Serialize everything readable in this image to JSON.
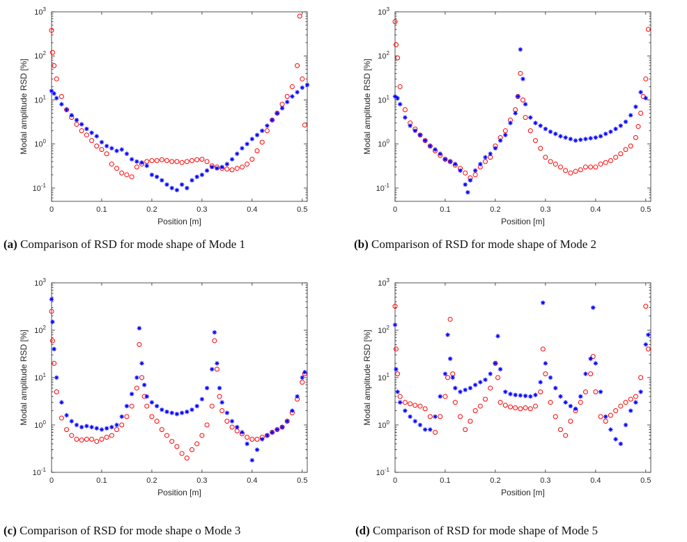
{
  "captions": [
    {
      "tag": "(a)",
      "text": "Comparison of RSD for mode shape of Mode 1"
    },
    {
      "tag": "(b)",
      "text": "Comparison of RSD for mode shape of Mode 2"
    },
    {
      "tag": "(c)",
      "text": "Comparison of RSD for mode shape o Mode 3"
    },
    {
      "tag": "(d)",
      "text": "Comparison of RSD for mode shape of Mode 5"
    }
  ],
  "colors": {
    "series_circle": "#ff0000",
    "series_star": "#0000ff",
    "axis": "#262626"
  },
  "chart_data": [
    {
      "type": "scatter",
      "xlabel": "Position [m]",
      "ylabel": "Modal amplitude RSD [%]",
      "xlim": [
        0,
        0.51
      ],
      "ylim": [
        0.05,
        1000
      ],
      "yscale": "log",
      "xticks": [
        "0",
        "0.1",
        "0.2",
        "0.3",
        "0.4",
        "0.5"
      ],
      "yticks": [
        "10-1",
        "100",
        "101",
        "102",
        "103"
      ],
      "series": [
        {
          "marker": "circle",
          "color": "#ff0000",
          "x": [
            0.0,
            0.002,
            0.005,
            0.01,
            0.02,
            0.03,
            0.04,
            0.05,
            0.06,
            0.07,
            0.08,
            0.09,
            0.1,
            0.11,
            0.12,
            0.13,
            0.14,
            0.15,
            0.16,
            0.17,
            0.18,
            0.19,
            0.2,
            0.21,
            0.22,
            0.23,
            0.24,
            0.25,
            0.26,
            0.27,
            0.28,
            0.29,
            0.3,
            0.31,
            0.32,
            0.33,
            0.34,
            0.35,
            0.36,
            0.37,
            0.38,
            0.39,
            0.4,
            0.41,
            0.42,
            0.43,
            0.44,
            0.45,
            0.46,
            0.47,
            0.48,
            0.49,
            0.495,
            0.5,
            0.505
          ],
          "y": [
            380,
            120,
            60,
            30,
            12,
            6,
            4,
            2.8,
            2.0,
            1.6,
            1.2,
            0.9,
            0.75,
            0.6,
            0.35,
            0.28,
            0.22,
            0.2,
            0.18,
            0.3,
            0.35,
            0.4,
            0.42,
            0.42,
            0.44,
            0.42,
            0.4,
            0.4,
            0.38,
            0.4,
            0.42,
            0.44,
            0.45,
            0.4,
            0.32,
            0.3,
            0.28,
            0.27,
            0.26,
            0.28,
            0.3,
            0.35,
            0.45,
            0.7,
            1.1,
            2.0,
            3.5,
            5,
            8,
            12,
            20,
            60,
            800,
            30,
            2.7
          ]
        },
        {
          "marker": "star",
          "color": "#0000ff",
          "x": [
            0.0,
            0.005,
            0.01,
            0.02,
            0.03,
            0.04,
            0.05,
            0.06,
            0.07,
            0.08,
            0.09,
            0.1,
            0.11,
            0.12,
            0.13,
            0.14,
            0.15,
            0.16,
            0.17,
            0.18,
            0.19,
            0.2,
            0.21,
            0.22,
            0.23,
            0.24,
            0.25,
            0.26,
            0.27,
            0.28,
            0.29,
            0.3,
            0.31,
            0.32,
            0.33,
            0.34,
            0.35,
            0.36,
            0.37,
            0.38,
            0.39,
            0.4,
            0.41,
            0.42,
            0.43,
            0.44,
            0.45,
            0.46,
            0.47,
            0.48,
            0.49,
            0.5,
            0.51
          ],
          "y": [
            16,
            14,
            11,
            8,
            6,
            4.5,
            3.5,
            2.8,
            2.2,
            1.8,
            1.5,
            1.1,
            0.9,
            0.8,
            0.7,
            0.75,
            0.6,
            0.45,
            0.4,
            0.38,
            0.32,
            0.2,
            0.18,
            0.15,
            0.12,
            0.1,
            0.09,
            0.12,
            0.1,
            0.15,
            0.18,
            0.2,
            0.25,
            0.3,
            0.28,
            0.3,
            0.35,
            0.45,
            0.6,
            0.8,
            1.0,
            1.3,
            1.6,
            2.0,
            2.6,
            3.5,
            5,
            6.5,
            9,
            12,
            15,
            19,
            22
          ]
        }
      ]
    },
    {
      "type": "scatter",
      "xlabel": "Position [m]",
      "ylabel": "Modal amplitude RSD [%]",
      "xlim": [
        0,
        0.51
      ],
      "ylim": [
        0.05,
        1000
      ],
      "yscale": "log",
      "xticks": [
        "0",
        "0.1",
        "0.2",
        "0.3",
        "0.4",
        "0.5"
      ],
      "yticks": [
        "10-1",
        "100",
        "101",
        "102",
        "103"
      ],
      "series": [
        {
          "marker": "circle",
          "color": "#ff0000",
          "x": [
            0.0,
            0.002,
            0.005,
            0.01,
            0.02,
            0.03,
            0.04,
            0.05,
            0.06,
            0.07,
            0.08,
            0.09,
            0.1,
            0.11,
            0.12,
            0.13,
            0.14,
            0.15,
            0.16,
            0.17,
            0.18,
            0.19,
            0.2,
            0.21,
            0.22,
            0.23,
            0.24,
            0.245,
            0.25,
            0.255,
            0.26,
            0.27,
            0.28,
            0.29,
            0.3,
            0.31,
            0.32,
            0.33,
            0.34,
            0.35,
            0.36,
            0.37,
            0.38,
            0.39,
            0.4,
            0.41,
            0.42,
            0.43,
            0.44,
            0.45,
            0.46,
            0.47,
            0.48,
            0.485,
            0.49,
            0.495,
            0.5,
            0.505
          ],
          "y": [
            600,
            180,
            90,
            20,
            6,
            3,
            2.2,
            1.6,
            1.2,
            0.9,
            0.7,
            0.55,
            0.45,
            0.4,
            0.33,
            0.28,
            0.22,
            0.17,
            0.2,
            0.3,
            0.4,
            0.5,
            0.9,
            1.4,
            2.0,
            3.5,
            6,
            12,
            40,
            10,
            4,
            2.0,
            1.2,
            0.8,
            0.5,
            0.4,
            0.35,
            0.3,
            0.25,
            0.22,
            0.24,
            0.26,
            0.3,
            0.3,
            0.3,
            0.35,
            0.38,
            0.42,
            0.5,
            0.6,
            0.75,
            0.9,
            1.4,
            2.5,
            5,
            12,
            30,
            400
          ]
        },
        {
          "marker": "star",
          "color": "#0000ff",
          "x": [
            0.0,
            0.005,
            0.01,
            0.02,
            0.03,
            0.04,
            0.05,
            0.06,
            0.07,
            0.08,
            0.09,
            0.1,
            0.11,
            0.12,
            0.13,
            0.14,
            0.145,
            0.15,
            0.16,
            0.17,
            0.18,
            0.19,
            0.2,
            0.21,
            0.22,
            0.23,
            0.24,
            0.245,
            0.25,
            0.255,
            0.26,
            0.27,
            0.28,
            0.29,
            0.3,
            0.31,
            0.32,
            0.33,
            0.34,
            0.35,
            0.36,
            0.37,
            0.38,
            0.39,
            0.4,
            0.41,
            0.42,
            0.43,
            0.44,
            0.45,
            0.46,
            0.47,
            0.48,
            0.49,
            0.5
          ],
          "y": [
            12,
            11,
            8,
            4,
            2.6,
            2.0,
            1.6,
            1.2,
            0.9,
            0.75,
            0.6,
            0.45,
            0.4,
            0.35,
            0.25,
            0.12,
            0.08,
            0.15,
            0.25,
            0.35,
            0.5,
            0.6,
            0.8,
            1.2,
            1.6,
            3.0,
            5,
            12,
            140,
            30,
            8,
            4,
            3,
            2.6,
            2.2,
            1.9,
            1.7,
            1.5,
            1.4,
            1.3,
            1.2,
            1.25,
            1.3,
            1.35,
            1.4,
            1.5,
            1.7,
            1.9,
            2.2,
            2.6,
            3.2,
            4.5,
            7,
            15,
            11
          ]
        }
      ]
    },
    {
      "type": "scatter",
      "xlabel": "Position [m]",
      "ylabel": "Modal amplitude RSD [%]",
      "xlim": [
        0,
        0.51
      ],
      "ylim": [
        0.1,
        1000
      ],
      "yscale": "log",
      "xticks": [
        "0",
        "0.1",
        "0.2",
        "0.3",
        "0.4",
        "0.5"
      ],
      "yticks": [
        "10-1",
        "100",
        "101",
        "102",
        "103"
      ],
      "series": [
        {
          "marker": "circle",
          "color": "#ff0000",
          "x": [
            0.0,
            0.002,
            0.005,
            0.01,
            0.02,
            0.03,
            0.04,
            0.05,
            0.06,
            0.07,
            0.08,
            0.09,
            0.1,
            0.11,
            0.12,
            0.13,
            0.14,
            0.15,
            0.16,
            0.17,
            0.175,
            0.18,
            0.185,
            0.19,
            0.2,
            0.21,
            0.22,
            0.23,
            0.24,
            0.25,
            0.26,
            0.27,
            0.28,
            0.29,
            0.3,
            0.31,
            0.32,
            0.325,
            0.33,
            0.335,
            0.34,
            0.35,
            0.36,
            0.37,
            0.38,
            0.39,
            0.4,
            0.41,
            0.42,
            0.43,
            0.44,
            0.45,
            0.46,
            0.47,
            0.48,
            0.49,
            0.5,
            0.505
          ],
          "y": [
            250,
            60,
            20,
            5,
            1.4,
            0.8,
            0.6,
            0.5,
            0.48,
            0.5,
            0.5,
            0.45,
            0.5,
            0.55,
            0.6,
            0.8,
            1.0,
            1.5,
            2.5,
            6,
            50,
            10,
            4,
            2.5,
            1.5,
            1.2,
            0.8,
            0.6,
            0.45,
            0.35,
            0.25,
            0.2,
            0.3,
            0.4,
            0.6,
            1.0,
            2.5,
            60,
            15,
            4,
            2.0,
            1.2,
            0.9,
            0.75,
            0.65,
            0.55,
            0.5,
            0.5,
            0.55,
            0.6,
            0.7,
            0.8,
            0.9,
            1.2,
            1.8,
            3.5,
            8,
            12
          ]
        },
        {
          "marker": "star",
          "color": "#0000ff",
          "x": [
            0.0,
            0.002,
            0.005,
            0.01,
            0.02,
            0.03,
            0.04,
            0.05,
            0.06,
            0.07,
            0.08,
            0.09,
            0.1,
            0.11,
            0.12,
            0.13,
            0.14,
            0.15,
            0.16,
            0.17,
            0.175,
            0.18,
            0.185,
            0.19,
            0.2,
            0.21,
            0.22,
            0.23,
            0.24,
            0.25,
            0.26,
            0.27,
            0.28,
            0.29,
            0.3,
            0.31,
            0.32,
            0.325,
            0.33,
            0.335,
            0.34,
            0.35,
            0.36,
            0.37,
            0.38,
            0.39,
            0.4,
            0.41,
            0.42,
            0.43,
            0.44,
            0.45,
            0.46,
            0.47,
            0.48,
            0.49,
            0.5,
            0.505
          ],
          "y": [
            450,
            150,
            40,
            10,
            3,
            1.6,
            1.2,
            1.0,
            0.9,
            0.95,
            0.9,
            0.85,
            0.8,
            0.85,
            0.9,
            1.0,
            1.5,
            2.5,
            4.5,
            10,
            110,
            20,
            7,
            4,
            3,
            2.5,
            2.1,
            1.9,
            1.8,
            1.7,
            1.8,
            1.9,
            2.1,
            2.5,
            3.5,
            6,
            15,
            90,
            20,
            6,
            3,
            1.8,
            1.2,
            0.9,
            0.7,
            0.4,
            0.18,
            0.3,
            0.5,
            0.6,
            0.7,
            0.8,
            0.9,
            1.2,
            2.0,
            4,
            10,
            13
          ]
        }
      ]
    },
    {
      "type": "scatter",
      "xlabel": "Position [m]",
      "ylabel": "Modal amplitude RSD [%]",
      "xlim": [
        0,
        0.51
      ],
      "ylim": [
        0.1,
        1000
      ],
      "yscale": "log",
      "xticks": [
        "0",
        "0.1",
        "0.2",
        "0.3",
        "0.4",
        "0.5"
      ],
      "yticks": [
        "10-1",
        "100",
        "101",
        "102",
        "103"
      ],
      "series": [
        {
          "marker": "circle",
          "color": "#ff0000",
          "x": [
            0.0,
            0.002,
            0.005,
            0.01,
            0.02,
            0.03,
            0.04,
            0.05,
            0.06,
            0.07,
            0.08,
            0.09,
            0.1,
            0.105,
            0.11,
            0.115,
            0.12,
            0.13,
            0.14,
            0.15,
            0.16,
            0.17,
            0.18,
            0.19,
            0.2,
            0.205,
            0.21,
            0.22,
            0.23,
            0.24,
            0.25,
            0.26,
            0.27,
            0.28,
            0.29,
            0.295,
            0.3,
            0.31,
            0.32,
            0.33,
            0.34,
            0.35,
            0.36,
            0.37,
            0.38,
            0.39,
            0.395,
            0.4,
            0.41,
            0.42,
            0.43,
            0.44,
            0.45,
            0.46,
            0.47,
            0.48,
            0.49,
            0.5,
            0.505
          ],
          "y": [
            320,
            40,
            12,
            4,
            3,
            2.8,
            2.6,
            2.5,
            2.2,
            1.5,
            0.7,
            1.5,
            4,
            10,
            170,
            12,
            3,
            1.5,
            0.8,
            1.2,
            2.0,
            2.5,
            3.5,
            6,
            20,
            10,
            3,
            2.6,
            2.4,
            2.3,
            2.2,
            2.3,
            2.2,
            2.5,
            5,
            40,
            12,
            3,
            1.5,
            0.8,
            0.6,
            1.2,
            2.0,
            3.0,
            5,
            12,
            28,
            5,
            1.5,
            1.2,
            1.6,
            2.0,
            2.5,
            3.0,
            3.5,
            4,
            10,
            320,
            40
          ]
        },
        {
          "marker": "star",
          "color": "#0000ff",
          "x": [
            0.0,
            0.002,
            0.005,
            0.01,
            0.02,
            0.03,
            0.04,
            0.05,
            0.06,
            0.07,
            0.08,
            0.09,
            0.1,
            0.105,
            0.11,
            0.115,
            0.12,
            0.13,
            0.14,
            0.15,
            0.16,
            0.17,
            0.18,
            0.19,
            0.2,
            0.205,
            0.21,
            0.22,
            0.23,
            0.24,
            0.25,
            0.26,
            0.27,
            0.28,
            0.29,
            0.295,
            0.3,
            0.31,
            0.32,
            0.33,
            0.34,
            0.35,
            0.36,
            0.37,
            0.38,
            0.39,
            0.395,
            0.4,
            0.41,
            0.42,
            0.43,
            0.44,
            0.45,
            0.46,
            0.47,
            0.48,
            0.49,
            0.5,
            0.505
          ],
          "y": [
            130,
            15,
            5,
            3,
            2.0,
            1.5,
            1.2,
            1.0,
            0.8,
            0.8,
            1.5,
            4,
            12,
            80,
            25,
            10,
            6,
            5,
            5.5,
            6,
            7,
            8,
            9,
            12,
            20,
            75,
            15,
            5,
            4.5,
            4.3,
            4.2,
            4.1,
            4.0,
            4.3,
            8,
            380,
            20,
            10,
            6,
            4,
            3,
            2.5,
            2.2,
            4,
            12,
            25,
            300,
            20,
            5,
            1.5,
            0.8,
            0.5,
            0.4,
            1.0,
            2.0,
            3.0,
            5,
            50,
            80
          ]
        }
      ]
    }
  ]
}
